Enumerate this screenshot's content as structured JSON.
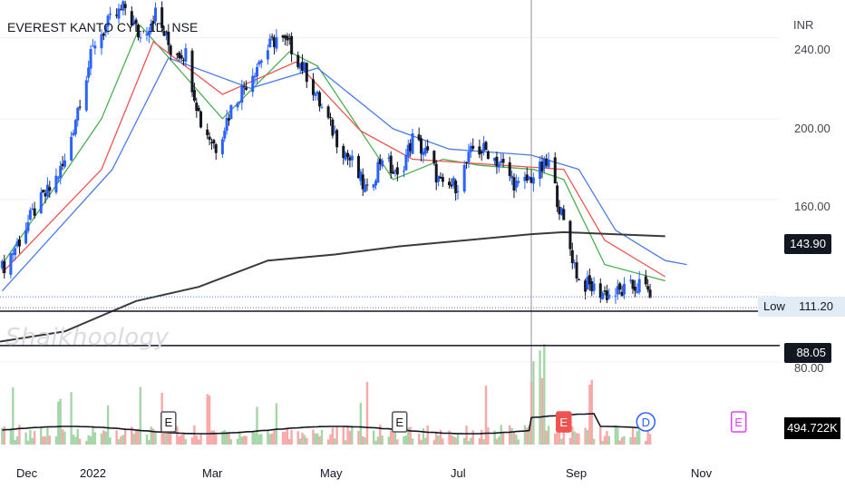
{
  "title": "EVEREST KANTO CYL, 1D, NSE",
  "watermark": "Shaikhoology",
  "currency": "INR",
  "price_ticks": [
    "240.00",
    "200.00",
    "160.00",
    "80.00"
  ],
  "badges": {
    "last": "143.90",
    "support": "88.05",
    "low_label": "Low",
    "low_value": "111.20",
    "volume": "494.722K"
  },
  "x_labels": [
    "Dec",
    "2022",
    "Mar",
    "May",
    "Jul",
    "Sep",
    "Nov"
  ],
  "events": [
    "E",
    "E",
    "E",
    "D",
    "E"
  ],
  "colors": {
    "ma_fast": "#4caf50",
    "ma_mid": "#ef5350",
    "ma_slow": "#4c7be8",
    "ma_long": "#3a3a3a",
    "bull": "#2962ff",
    "bear": "#131722",
    "vol_up": "#a5d6a7",
    "vol_down": "#f7a8a8"
  },
  "chart_data": {
    "type": "candlestick",
    "symbol": "EVEREST KANTO CYL",
    "interval": "1D",
    "exchange": "NSE",
    "y_range": [
      75,
      255
    ],
    "x_range": [
      "2021-11-24",
      "2022-11-20"
    ],
    "close_path": [
      [
        "2021-11-25",
        126
      ],
      [
        "2021-12-03",
        140
      ],
      [
        "2021-12-10",
        155
      ],
      [
        "2021-12-17",
        165
      ],
      [
        "2021-12-24",
        178
      ],
      [
        "2021-12-31",
        210
      ],
      [
        "2022-01-07",
        238
      ],
      [
        "2022-01-14",
        248
      ],
      [
        "2022-01-21",
        255
      ],
      [
        "2022-01-28",
        240
      ],
      [
        "2022-02-04",
        252
      ],
      [
        "2022-02-11",
        234
      ],
      [
        "2022-02-18",
        232
      ],
      [
        "2022-02-25",
        198
      ],
      [
        "2022-03-04",
        186
      ],
      [
        "2022-03-11",
        205
      ],
      [
        "2022-03-18",
        218
      ],
      [
        "2022-03-25",
        230
      ],
      [
        "2022-04-01",
        240
      ],
      [
        "2022-04-08",
        235
      ],
      [
        "2022-04-15",
        222
      ],
      [
        "2022-04-22",
        205
      ],
      [
        "2022-04-29",
        190
      ],
      [
        "2022-05-06",
        178
      ],
      [
        "2022-05-13",
        163
      ],
      [
        "2022-05-20",
        182
      ],
      [
        "2022-05-27",
        170
      ],
      [
        "2022-06-03",
        190
      ],
      [
        "2022-06-10",
        182
      ],
      [
        "2022-06-17",
        165
      ],
      [
        "2022-06-24",
        168
      ],
      [
        "2022-07-01",
        185
      ],
      [
        "2022-07-08",
        184
      ],
      [
        "2022-07-15",
        176
      ],
      [
        "2022-07-22",
        166
      ],
      [
        "2022-07-29",
        172
      ],
      [
        "2022-08-05",
        178
      ],
      [
        "2022-08-12",
        148
      ],
      [
        "2022-08-19",
        120
      ],
      [
        "2022-08-26",
        116
      ],
      [
        "2022-09-02",
        113
      ],
      [
        "2022-09-09",
        115
      ],
      [
        "2022-09-16",
        118
      ],
      [
        "2022-09-21",
        114
      ]
    ],
    "moving_averages": [
      {
        "key": "ma_fast",
        "points": [
          [
            "2021-11-25",
            128
          ],
          [
            "2022-01-10",
            200
          ],
          [
            "2022-01-28",
            246
          ],
          [
            "2022-03-07",
            200
          ],
          [
            "2022-04-07",
            233
          ],
          [
            "2022-04-20",
            226
          ],
          [
            "2022-05-25",
            170
          ],
          [
            "2022-06-17",
            180
          ],
          [
            "2022-07-04",
            177
          ],
          [
            "2022-07-29",
            175
          ],
          [
            "2022-08-12",
            170
          ],
          [
            "2022-08-31",
            128
          ],
          [
            "2022-09-28",
            120
          ]
        ]
      },
      {
        "key": "ma_mid",
        "points": [
          [
            "2021-11-25",
            124
          ],
          [
            "2022-01-10",
            175
          ],
          [
            "2022-02-03",
            238
          ],
          [
            "2022-03-07",
            212
          ],
          [
            "2022-04-10",
            228
          ],
          [
            "2022-05-10",
            194
          ],
          [
            "2022-06-03",
            180
          ],
          [
            "2022-07-01",
            178
          ],
          [
            "2022-07-29",
            176
          ],
          [
            "2022-08-12",
            175
          ],
          [
            "2022-08-31",
            140
          ],
          [
            "2022-09-28",
            122
          ]
        ]
      },
      {
        "key": "ma_slow",
        "points": [
          [
            "2021-11-25",
            115
          ],
          [
            "2022-01-15",
            175
          ],
          [
            "2022-02-10",
            230
          ],
          [
            "2022-03-20",
            215
          ],
          [
            "2022-04-20",
            225
          ],
          [
            "2022-05-25",
            195
          ],
          [
            "2022-06-20",
            185
          ],
          [
            "2022-07-28",
            182
          ],
          [
            "2022-08-19",
            175
          ],
          [
            "2022-09-05",
            145
          ],
          [
            "2022-09-28",
            130
          ],
          [
            "2022-10-08",
            128
          ]
        ]
      },
      {
        "key": "ma_long",
        "points": [
          [
            "2021-11-24",
            90
          ],
          [
            "2021-12-24",
            95
          ],
          [
            "2022-01-26",
            110
          ],
          [
            "2022-02-24",
            117
          ],
          [
            "2022-03-28",
            130
          ],
          [
            "2022-04-28",
            133
          ],
          [
            "2022-05-28",
            137
          ],
          [
            "2022-06-28",
            140
          ],
          [
            "2022-07-28",
            143
          ],
          [
            "2022-08-12",
            144
          ],
          [
            "2022-09-04",
            143
          ],
          [
            "2022-09-28",
            142
          ]
        ]
      }
    ],
    "last_price": 143.9,
    "low": 111.2,
    "support_level": 88.05,
    "volume_last": "494.722K",
    "events": [
      {
        "date": "2022-02-10",
        "label": "E"
      },
      {
        "date": "2022-05-28",
        "label": "E"
      },
      {
        "date": "2022-08-12",
        "label": "E"
      },
      {
        "date": "2022-09-19",
        "label": "D"
      },
      {
        "date": "2022-11-01",
        "label": "E"
      }
    ]
  }
}
